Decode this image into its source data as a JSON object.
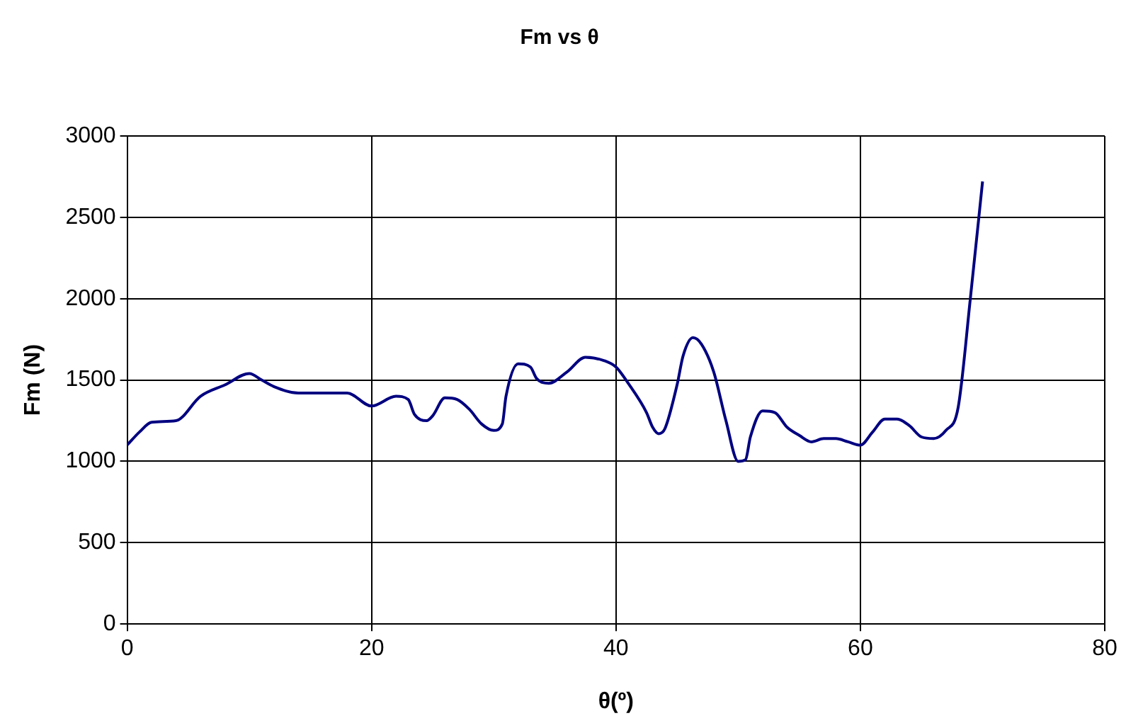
{
  "chart_data": {
    "type": "line",
    "title": "Fm vs θ",
    "xlabel": "θ(º)",
    "ylabel": "Fm (N)",
    "xlim": [
      0,
      80
    ],
    "xticks": [
      0,
      20,
      40,
      60,
      80
    ],
    "ylim": [
      0,
      3000
    ],
    "yticks": [
      0,
      500,
      1000,
      1500,
      2000,
      2500,
      3000
    ],
    "grid": true,
    "legend": false,
    "marker": "none",
    "line_style": "solid",
    "series": [
      {
        "color": "#000080",
        "x": [
          0,
          1,
          2,
          4,
          6,
          8,
          10,
          11,
          12,
          14,
          18,
          20,
          22,
          23,
          23.5,
          24.5,
          25,
          26,
          27,
          28,
          29,
          30,
          30.7,
          31,
          32,
          33,
          33.5,
          34.5,
          36,
          37.5,
          39,
          40,
          41,
          42.5,
          43,
          43.5,
          44,
          45,
          45.5,
          46.3,
          47,
          48,
          49,
          50,
          50.6,
          51,
          52,
          53,
          54,
          55,
          56,
          57,
          58,
          59,
          60,
          61,
          62,
          63,
          64,
          65,
          66,
          67,
          68,
          69,
          70
        ],
        "values": [
          1100,
          1180,
          1240,
          1250,
          1400,
          1470,
          1540,
          1500,
          1460,
          1420,
          1420,
          1340,
          1400,
          1380,
          1290,
          1250,
          1280,
          1390,
          1380,
          1320,
          1230,
          1190,
          1230,
          1400,
          1600,
          1580,
          1510,
          1480,
          1550,
          1640,
          1620,
          1580,
          1480,
          1300,
          1210,
          1170,
          1200,
          1470,
          1650,
          1760,
          1720,
          1550,
          1250,
          1000,
          1010,
          1150,
          1310,
          1300,
          1210,
          1160,
          1120,
          1140,
          1140,
          1120,
          1100,
          1180,
          1260,
          1260,
          1220,
          1150,
          1140,
          1190,
          1330,
          2000,
          2720
        ]
      }
    ]
  }
}
